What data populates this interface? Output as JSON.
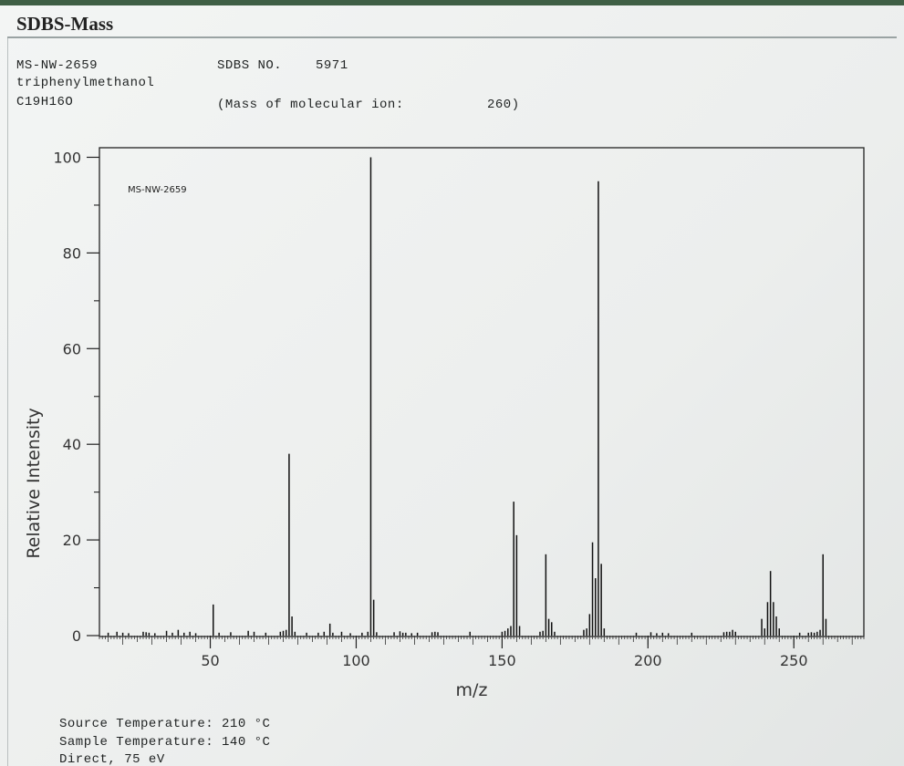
{
  "app": {
    "title": "SDBS-Mass"
  },
  "header": {
    "code": "MS-NW-2659",
    "name": "triphenylmethanol",
    "formula": "C19H16O",
    "sdbs_label": "SDBS NO.",
    "sdbs_no": "5971",
    "molecular_ion_label": "(Mass of molecular ion:",
    "molecular_ion_value": "260)"
  },
  "chart_data": {
    "type": "bar",
    "title": "",
    "annotation": "MS-NW-2659",
    "xlabel": "m/z",
    "ylabel": "Relative Intensity",
    "xlim": [
      12,
      274
    ],
    "ylim": [
      0,
      102
    ],
    "xticks": [
      50,
      100,
      150,
      200,
      250
    ],
    "yticks": [
      0,
      20,
      40,
      60,
      80,
      100
    ],
    "grid": false,
    "color": "#111111",
    "peaks": [
      {
        "mz": 15,
        "y": 0.6
      },
      {
        "mz": 18,
        "y": 0.8
      },
      {
        "mz": 20,
        "y": 0.6
      },
      {
        "mz": 22,
        "y": 0.5
      },
      {
        "mz": 27,
        "y": 0.8
      },
      {
        "mz": 28,
        "y": 0.7
      },
      {
        "mz": 29,
        "y": 0.6
      },
      {
        "mz": 31,
        "y": 0.5
      },
      {
        "mz": 35,
        "y": 1.0
      },
      {
        "mz": 37,
        "y": 0.6
      },
      {
        "mz": 39,
        "y": 1.2
      },
      {
        "mz": 41,
        "y": 0.6
      },
      {
        "mz": 43,
        "y": 0.8
      },
      {
        "mz": 45,
        "y": 0.5
      },
      {
        "mz": 51,
        "y": 6.5
      },
      {
        "mz": 53,
        "y": 0.6
      },
      {
        "mz": 57,
        "y": 0.7
      },
      {
        "mz": 63,
        "y": 1.0
      },
      {
        "mz": 65,
        "y": 0.8
      },
      {
        "mz": 69,
        "y": 0.6
      },
      {
        "mz": 74,
        "y": 0.8
      },
      {
        "mz": 75,
        "y": 1.0
      },
      {
        "mz": 76,
        "y": 1.2
      },
      {
        "mz": 77,
        "y": 38
      },
      {
        "mz": 78,
        "y": 4.0
      },
      {
        "mz": 79,
        "y": 0.8
      },
      {
        "mz": 83,
        "y": 0.6
      },
      {
        "mz": 87,
        "y": 0.6
      },
      {
        "mz": 89,
        "y": 0.8
      },
      {
        "mz": 91,
        "y": 2.5
      },
      {
        "mz": 92,
        "y": 0.6
      },
      {
        "mz": 95,
        "y": 0.8
      },
      {
        "mz": 98,
        "y": 0.5
      },
      {
        "mz": 102,
        "y": 0.6
      },
      {
        "mz": 104,
        "y": 0.8
      },
      {
        "mz": 105,
        "y": 100
      },
      {
        "mz": 106,
        "y": 7.5
      },
      {
        "mz": 107,
        "y": 0.7
      },
      {
        "mz": 113,
        "y": 0.7
      },
      {
        "mz": 115,
        "y": 0.9
      },
      {
        "mz": 116,
        "y": 0.6
      },
      {
        "mz": 117,
        "y": 0.6
      },
      {
        "mz": 119,
        "y": 0.5
      },
      {
        "mz": 121,
        "y": 0.6
      },
      {
        "mz": 126,
        "y": 0.7
      },
      {
        "mz": 127,
        "y": 0.8
      },
      {
        "mz": 128,
        "y": 0.7
      },
      {
        "mz": 139,
        "y": 0.8
      },
      {
        "mz": 150,
        "y": 0.8
      },
      {
        "mz": 151,
        "y": 1.0
      },
      {
        "mz": 152,
        "y": 1.5
      },
      {
        "mz": 153,
        "y": 2.0
      },
      {
        "mz": 154,
        "y": 28
      },
      {
        "mz": 155,
        "y": 21
      },
      {
        "mz": 156,
        "y": 2.0
      },
      {
        "mz": 163,
        "y": 0.8
      },
      {
        "mz": 164,
        "y": 1.0
      },
      {
        "mz": 165,
        "y": 17
      },
      {
        "mz": 166,
        "y": 3.5
      },
      {
        "mz": 167,
        "y": 2.8
      },
      {
        "mz": 168,
        "y": 0.8
      },
      {
        "mz": 178,
        "y": 1.2
      },
      {
        "mz": 179,
        "y": 1.5
      },
      {
        "mz": 180,
        "y": 4.5
      },
      {
        "mz": 181,
        "y": 19.5
      },
      {
        "mz": 182,
        "y": 12
      },
      {
        "mz": 183,
        "y": 95
      },
      {
        "mz": 184,
        "y": 15
      },
      {
        "mz": 185,
        "y": 1.5
      },
      {
        "mz": 196,
        "y": 0.6
      },
      {
        "mz": 201,
        "y": 0.7
      },
      {
        "mz": 203,
        "y": 0.5
      },
      {
        "mz": 205,
        "y": 0.6
      },
      {
        "mz": 207,
        "y": 0.5
      },
      {
        "mz": 215,
        "y": 0.6
      },
      {
        "mz": 226,
        "y": 0.7
      },
      {
        "mz": 227,
        "y": 0.8
      },
      {
        "mz": 228,
        "y": 0.8
      },
      {
        "mz": 229,
        "y": 1.2
      },
      {
        "mz": 230,
        "y": 0.8
      },
      {
        "mz": 239,
        "y": 3.5
      },
      {
        "mz": 240,
        "y": 1.5
      },
      {
        "mz": 241,
        "y": 7
      },
      {
        "mz": 242,
        "y": 13.5
      },
      {
        "mz": 243,
        "y": 7
      },
      {
        "mz": 244,
        "y": 4
      },
      {
        "mz": 245,
        "y": 1.5
      },
      {
        "mz": 252,
        "y": 0.6
      },
      {
        "mz": 255,
        "y": 0.6
      },
      {
        "mz": 256,
        "y": 0.7
      },
      {
        "mz": 257,
        "y": 0.6
      },
      {
        "mz": 258,
        "y": 0.8
      },
      {
        "mz": 259,
        "y": 1.2
      },
      {
        "mz": 260,
        "y": 17
      },
      {
        "mz": 261,
        "y": 3.5
      }
    ]
  },
  "footer": {
    "source_temp": "Source Temperature: 210 °C",
    "sample_temp": "Sample Temperature: 140 °C",
    "method": "Direct, 75 eV"
  }
}
